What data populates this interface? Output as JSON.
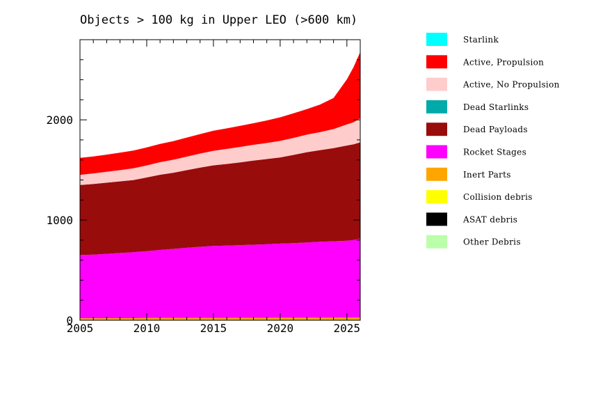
{
  "chart_data": {
    "type": "area",
    "stacked": true,
    "title": "Objects > 100 kg in Upper LEO (>600 km)",
    "xlabel": "",
    "ylabel": "",
    "xlim": [
      2005,
      2026
    ],
    "ylim": [
      0,
      2800
    ],
    "x_ticks": [
      2005,
      2010,
      2015,
      2020,
      2025
    ],
    "x_tick_labels": [
      "2005",
      "2010",
      "2015",
      "2020",
      "2025"
    ],
    "y_ticks": [
      0,
      1000,
      2000
    ],
    "y_tick_labels": [
      "0",
      "1000",
      "2000"
    ],
    "legend_position": "right",
    "x": [
      2005,
      2006,
      2007,
      2008,
      2009,
      2010,
      2011,
      2012,
      2013,
      2014,
      2015,
      2016,
      2017,
      2018,
      2019,
      2020,
      2021,
      2022,
      2023,
      2024,
      2025,
      2025.5,
      2026
    ],
    "series": [
      {
        "name": "ASAT debris",
        "color": "#000000",
        "values": [
          0,
          0,
          0,
          0,
          0,
          0,
          0,
          0,
          0,
          0,
          0,
          0,
          0,
          0,
          0,
          0,
          0,
          0,
          0,
          0,
          0,
          0,
          0
        ]
      },
      {
        "name": "Collision debris",
        "color": "#ffff00",
        "values": [
          3,
          3,
          3,
          3,
          3,
          3,
          3,
          3,
          3,
          3,
          3,
          3,
          3,
          3,
          3,
          3,
          3,
          3,
          3,
          3,
          3,
          3,
          3
        ]
      },
      {
        "name": "Inert Parts",
        "color": "#ffa500",
        "values": [
          17,
          17,
          18,
          18,
          18,
          19,
          19,
          19,
          20,
          20,
          20,
          20,
          21,
          21,
          21,
          22,
          22,
          22,
          22,
          23,
          23,
          23,
          23
        ]
      },
      {
        "name": "Rocket Stages",
        "color": "#ff00ff",
        "values": [
          630,
          635,
          642,
          650,
          658,
          668,
          680,
          690,
          700,
          710,
          718,
          722,
          726,
          730,
          735,
          740,
          745,
          752,
          758,
          762,
          768,
          775,
          790
        ]
      },
      {
        "name": "Dead Payloads",
        "color": "#990c0c",
        "values": [
          700,
          705,
          710,
          715,
          720,
          735,
          750,
          760,
          775,
          790,
          805,
          815,
          825,
          840,
          850,
          860,
          880,
          900,
          915,
          930,
          950,
          955,
          960
        ]
      },
      {
        "name": "Active, No Propulsion",
        "color": "#ffcccc",
        "values": [
          100,
          105,
          108,
          112,
          117,
          120,
          125,
          130,
          135,
          140,
          145,
          150,
          155,
          157,
          160,
          165,
          170,
          175,
          180,
          190,
          210,
          220,
          240
        ]
      },
      {
        "name": "Active, Propulsion",
        "color": "#ff0000",
        "values": [
          170,
          170,
          172,
          175,
          177,
          180,
          183,
          186,
          190,
          195,
          200,
          205,
          210,
          215,
          225,
          235,
          245,
          255,
          275,
          310,
          450,
          550,
          660
        ]
      },
      {
        "name": "Dead Starlinks",
        "color": "#00aaaa",
        "values": [
          0,
          0,
          0,
          0,
          0,
          0,
          0,
          0,
          0,
          0,
          0,
          0,
          0,
          0,
          0,
          0,
          0,
          0,
          0,
          0,
          0,
          0,
          0
        ]
      },
      {
        "name": "Starlink",
        "color": "#00ffff",
        "values": [
          0,
          0,
          0,
          0,
          0,
          0,
          0,
          0,
          0,
          0,
          0,
          0,
          0,
          0,
          0,
          0,
          0,
          0,
          0,
          0,
          0,
          0,
          0
        ]
      },
      {
        "name": "Other Debris",
        "color": "#bbffaa",
        "values": [
          0,
          0,
          0,
          0,
          0,
          0,
          0,
          0,
          0,
          0,
          0,
          0,
          0,
          0,
          0,
          0,
          0,
          0,
          0,
          0,
          0,
          0,
          0
        ]
      }
    ],
    "legend": [
      {
        "name": "Starlink",
        "color": "#00ffff"
      },
      {
        "name": "Active, Propulsion",
        "color": "#ff0000"
      },
      {
        "name": "Active, No Propulsion",
        "color": "#ffcccc"
      },
      {
        "name": "Dead Starlinks",
        "color": "#00aaaa"
      },
      {
        "name": "Dead Payloads",
        "color": "#990c0c"
      },
      {
        "name": "Rocket Stages",
        "color": "#ff00ff"
      },
      {
        "name": "Inert Parts",
        "color": "#ffa500"
      },
      {
        "name": "Collision debris",
        "color": "#ffff00"
      },
      {
        "name": "ASAT debris",
        "color": "#000000"
      },
      {
        "name": "Other Debris",
        "color": "#bbffaa"
      }
    ]
  }
}
